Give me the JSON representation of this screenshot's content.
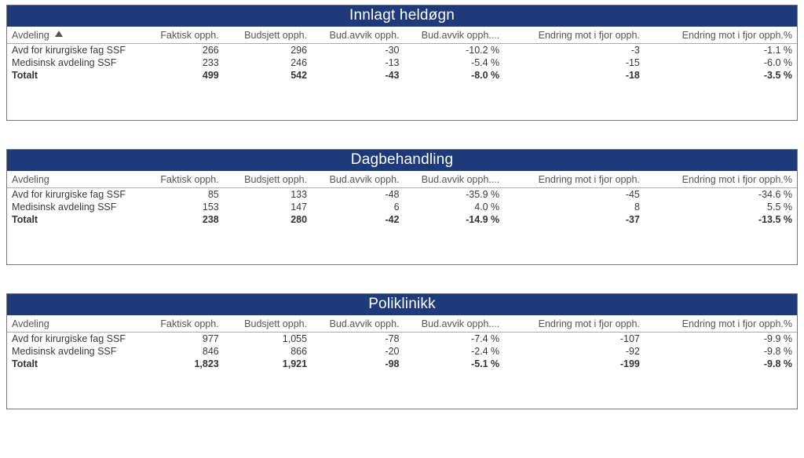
{
  "style": {
    "title_bg": "#1f3a7a",
    "title_fg": "#ffffff",
    "card_border": "#777777",
    "header_border": "#aaaaaa",
    "font_family": "Segoe UI",
    "title_fontsize": 19,
    "body_fontsize": 12.5
  },
  "columns": [
    "Avdeling",
    "Faktisk opph.",
    "Budsjett opph.",
    "Bud.avvik opph.",
    "Bud.avvik opph....",
    "Endring mot i fjor opph.",
    "Endring mot i fjor opph.%"
  ],
  "sorted_column_index": 0,
  "cards": [
    {
      "title": "Innlagt heldøgn",
      "rows": [
        {
          "dept": "Avd for kirurgiske fag SSF",
          "faktisk": "266",
          "budsjett": "296",
          "avvik": "-30",
          "avvik_pct": "-10.2 %",
          "endring": "-3",
          "endring_pct": "-1.1 %"
        },
        {
          "dept": "Medisinsk avdeling SSF",
          "faktisk": "233",
          "budsjett": "246",
          "avvik": "-13",
          "avvik_pct": "-5.4 %",
          "endring": "-15",
          "endring_pct": "-6.0 %"
        }
      ],
      "total": {
        "dept": "Totalt",
        "faktisk": "499",
        "budsjett": "542",
        "avvik": "-43",
        "avvik_pct": "-8.0 %",
        "endring": "-18",
        "endring_pct": "-3.5 %"
      }
    },
    {
      "title": "Dagbehandling",
      "rows": [
        {
          "dept": "Avd for kirurgiske fag SSF",
          "faktisk": "85",
          "budsjett": "133",
          "avvik": "-48",
          "avvik_pct": "-35.9 %",
          "endring": "-45",
          "endring_pct": "-34.6 %"
        },
        {
          "dept": "Medisinsk avdeling SSF",
          "faktisk": "153",
          "budsjett": "147",
          "avvik": "6",
          "avvik_pct": "4.0 %",
          "endring": "8",
          "endring_pct": "5.5 %"
        }
      ],
      "total": {
        "dept": "Totalt",
        "faktisk": "238",
        "budsjett": "280",
        "avvik": "-42",
        "avvik_pct": "-14.9 %",
        "endring": "-37",
        "endring_pct": "-13.5 %"
      }
    },
    {
      "title": "Poliklinikk",
      "rows": [
        {
          "dept": "Avd for kirurgiske fag SSF",
          "faktisk": "977",
          "budsjett": "1,055",
          "avvik": "-78",
          "avvik_pct": "-7.4 %",
          "endring": "-107",
          "endring_pct": "-9.9 %"
        },
        {
          "dept": "Medisinsk avdeling SSF",
          "faktisk": "846",
          "budsjett": "866",
          "avvik": "-20",
          "avvik_pct": "-2.4 %",
          "endring": "-92",
          "endring_pct": "-9.8 %"
        }
      ],
      "total": {
        "dept": "Totalt",
        "faktisk": "1,823",
        "budsjett": "1,921",
        "avvik": "-98",
        "avvik_pct": "-5.1 %",
        "endring": "-199",
        "endring_pct": "-9.8 %"
      }
    }
  ]
}
